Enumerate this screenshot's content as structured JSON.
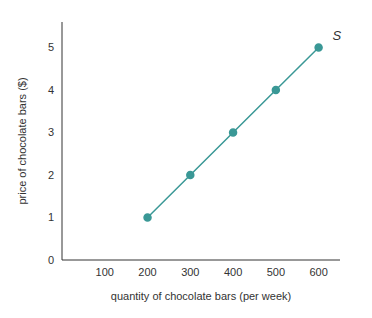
{
  "chart_data": {
    "type": "line",
    "x_label": "quantity of chocolate bars (per week)",
    "y_label": "price of chocolate bars ($)",
    "x": [
      200,
      300,
      400,
      500,
      600
    ],
    "series": [
      {
        "name": "S",
        "color": "#3a9896",
        "values": [
          1,
          2,
          3,
          4,
          5
        ],
        "marker": "circle"
      }
    ],
    "xlim": [
      0,
      650
    ],
    "xticks": [
      100,
      200,
      300,
      400,
      500,
      600
    ],
    "ylim": [
      0,
      5.6
    ],
    "yticks": [
      0,
      1,
      2,
      3,
      4,
      5
    ],
    "grid": false
  }
}
